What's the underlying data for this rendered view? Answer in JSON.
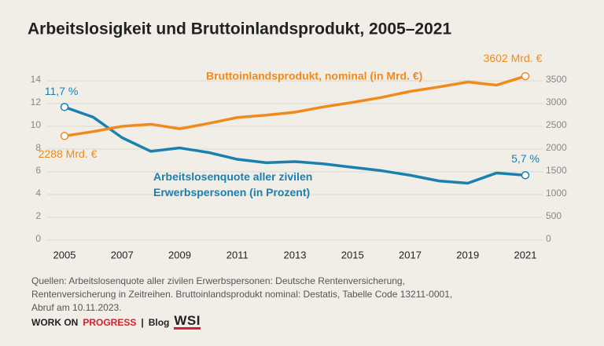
{
  "chart_data": {
    "type": "line",
    "title": "Arbeitslosigkeit und Bruttoinlandsprodukt, 2005–2021",
    "x": [
      2005,
      2006,
      2007,
      2008,
      2009,
      2010,
      2011,
      2012,
      2013,
      2014,
      2015,
      2016,
      2017,
      2018,
      2019,
      2020,
      2021
    ],
    "xlim": [
      2005,
      2021
    ],
    "xticks": [
      2005,
      2007,
      2009,
      2011,
      2013,
      2015,
      2017,
      2019,
      2021
    ],
    "ylim": [
      0,
      14.5
    ],
    "yticks": [
      0,
      2,
      4,
      6,
      8,
      10,
      12,
      14
    ],
    "y2lim": [
      0,
      3625
    ],
    "y2ticks": [
      0,
      500,
      1000,
      1500,
      2000,
      2500,
      3000,
      3500
    ],
    "grid": true,
    "series": [
      {
        "name": "Arbeitslosenquote aller zivilen Erwerbspersonen (in Prozent)",
        "color": "#1a80af",
        "axis": "y",
        "values": [
          11.7,
          10.8,
          9.0,
          7.8,
          8.1,
          7.7,
          7.1,
          6.8,
          6.9,
          6.7,
          6.4,
          6.1,
          5.7,
          5.2,
          5.0,
          5.9,
          5.7
        ],
        "value_labels": [
          "11,7 %",
          null,
          null,
          null,
          null,
          null,
          null,
          null,
          null,
          null,
          null,
          null,
          null,
          null,
          null,
          null,
          "5,7 %"
        ]
      },
      {
        "name": "Bruttoinlandsprodukt, nominal (in Mrd. €)",
        "color": "#f08a1c",
        "axis": "y2",
        "values": [
          2288,
          2385,
          2500,
          2546,
          2446,
          2564,
          2694,
          2745,
          2811,
          2928,
          3026,
          3135,
          3267,
          3365,
          3474,
          3405,
          3602
        ],
        "value_labels": [
          "2288 Mrd. €",
          null,
          null,
          null,
          null,
          null,
          null,
          null,
          null,
          null,
          null,
          null,
          null,
          null,
          null,
          null,
          "3602 Mrd. €"
        ]
      }
    ]
  },
  "source": [
    "Quellen: Arbeitslosenquote aller zivilen Erwerbspersonen: Deutsche Rentenversicherung, Rentenversicherung in Zeitreihen. Bruttoinlandsprodukt nominal: Destatis, Tabelle Code 13211-0001, Abruf am 10.11.2023."
  ],
  "footer": {
    "brand_1": "WORK ON",
    "brand_2": "PROGRESS",
    "separator": "|",
    "section": "Blog",
    "logo": "WSI"
  }
}
